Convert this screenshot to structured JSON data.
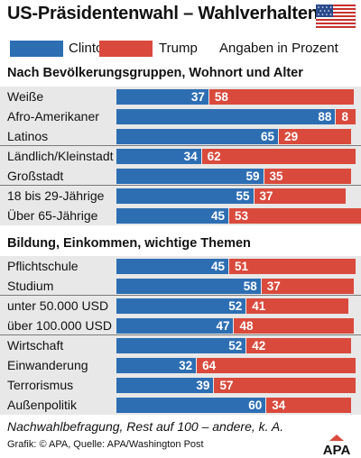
{
  "header": {
    "title": "US-Präsidentenwahl – Wahlverhalten"
  },
  "legend": {
    "clinton": "Clinton",
    "trump": "Trump",
    "unit": "Angaben in Prozent"
  },
  "colors": {
    "clinton": "#2d6eb3",
    "trump": "#d94a3c",
    "row_background": "#e8e8e8"
  },
  "icons": {
    "flag": "us-flag-icon",
    "logo": "apa-logo"
  },
  "chart_data": {
    "type": "bar",
    "orientation": "horizontal",
    "stacked": true,
    "sections": [
      {
        "heading": "Nach Bevölkerungsgruppen, Wohnort  und Alter",
        "groups": [
          [
            {
              "label": "Weiße",
              "clinton": 37,
              "trump": 58
            },
            {
              "label": "Afro-Amerikaner",
              "clinton": 88,
              "trump": 8
            },
            {
              "label": "Latinos",
              "clinton": 65,
              "trump": 29
            }
          ],
          [
            {
              "label": "Ländlich/Kleinstadt",
              "clinton": 34,
              "trump": 62
            },
            {
              "label": "Großstadt",
              "clinton": 59,
              "trump": 35
            }
          ],
          [
            {
              "label": "18 bis 29-Jährige",
              "clinton": 55,
              "trump": 37
            },
            {
              "label": "Über 65-Jährige",
              "clinton": 45,
              "trump": 53
            }
          ]
        ]
      },
      {
        "heading": "Bildung, Einkommen, wichtige Themen",
        "groups": [
          [
            {
              "label": "Pflichtschule",
              "clinton": 45,
              "trump": 51
            },
            {
              "label": "Studium",
              "clinton": 58,
              "trump": 37
            }
          ],
          [
            {
              "label": "unter 50.000 USD",
              "clinton": 52,
              "trump": 41
            },
            {
              "label": "über 100.000 USD",
              "clinton": 47,
              "trump": 48
            }
          ],
          [
            {
              "label": "Wirtschaft",
              "clinton": 52,
              "trump": 42
            },
            {
              "label": "Einwanderung",
              "clinton": 32,
              "trump": 64
            },
            {
              "label": "Terrorismus",
              "clinton": 39,
              "trump": 57
            },
            {
              "label": "Außenpolitik",
              "clinton": 60,
              "trump": 34
            }
          ]
        ]
      }
    ]
  },
  "footer": {
    "note": "Nachwahlbefragung, Rest auf 100 – andere, k. A.",
    "credit": "Grafik: © APA, Quelle: APA/Washington Post",
    "logo_text": "APA"
  }
}
